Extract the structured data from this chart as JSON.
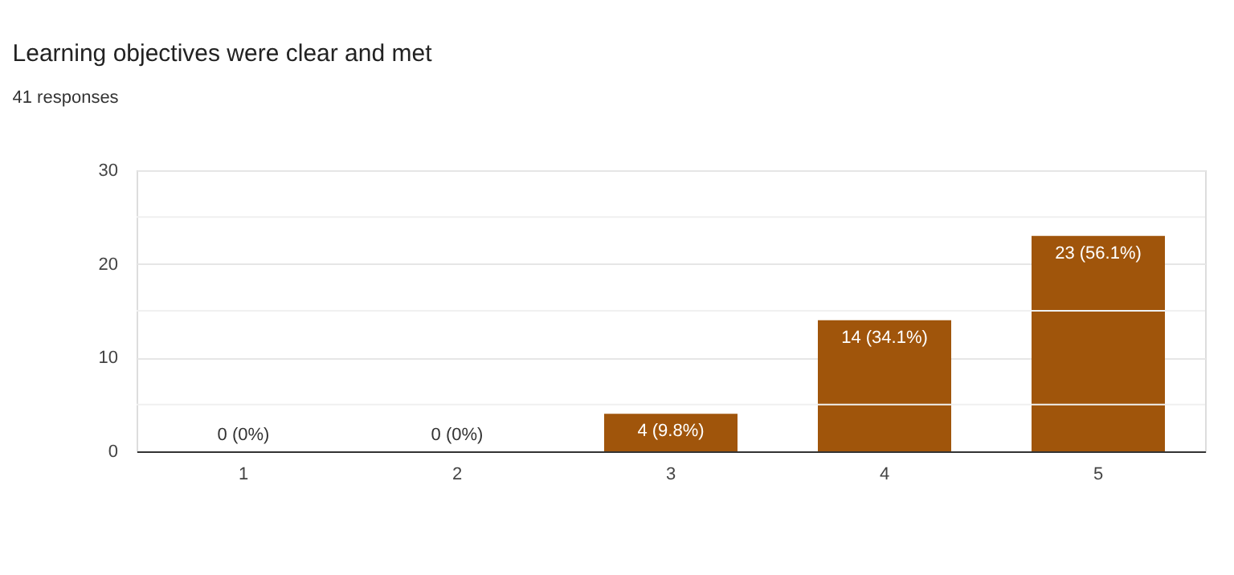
{
  "chart_data": {
    "type": "bar",
    "title": "Learning objectives were clear and met",
    "subtitle": "41 responses",
    "categories": [
      "1",
      "2",
      "3",
      "4",
      "5"
    ],
    "values": [
      0,
      0,
      4,
      14,
      23
    ],
    "value_labels": [
      "0 (0%)",
      "0 (0%)",
      "4 (9.8%)",
      "14 (34.1%)",
      "23 (56.1%)"
    ],
    "color": "#a0550b",
    "ylim": [
      0,
      30
    ],
    "yticks": [
      0,
      {
        "value": 5,
        "label": null
      },
      10,
      {
        "value": 15,
        "label": null
      },
      20,
      {
        "value": 25,
        "label": null
      },
      30
    ],
    "grid": "y"
  }
}
